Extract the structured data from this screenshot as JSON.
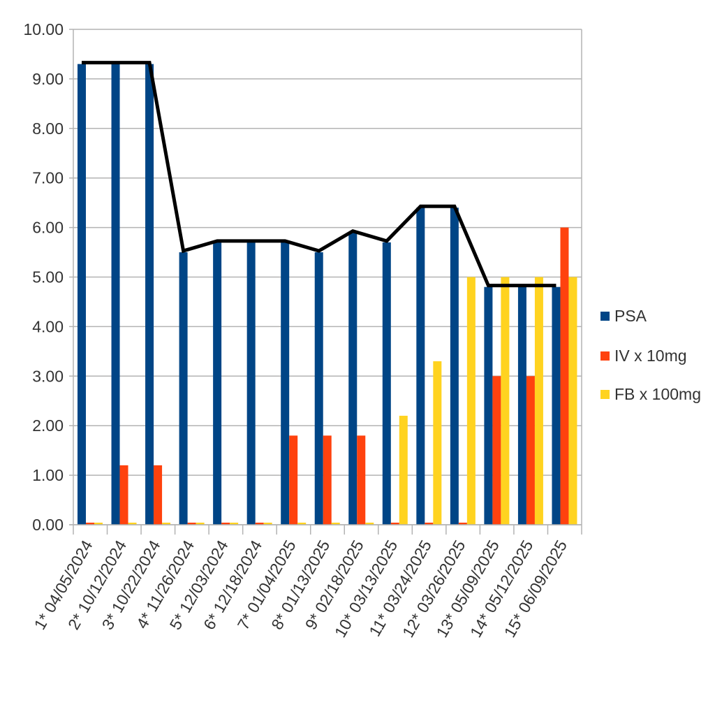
{
  "chart_data": {
    "type": "bar",
    "title": "",
    "xlabel": "",
    "ylabel": "",
    "ylim": [
      0,
      10
    ],
    "yticks": [
      "0.00",
      "1.00",
      "2.00",
      "3.00",
      "4.00",
      "5.00",
      "6.00",
      "7.00",
      "8.00",
      "9.00",
      "10.00"
    ],
    "grid": true,
    "legend_position": "right",
    "categories": [
      "1* 04/05/2024",
      "2* 10/12/2024",
      "3* 10/22/2024",
      "4* 11/26/2024",
      "5* 12/03/2024",
      "6* 12/18/2024",
      "7* 01/04/2025",
      "8* 01/13/2025",
      "9* 02/18/2025",
      "10* 03/13/2025",
      "11* 03/24/2025",
      "12* 03/26/2025",
      "13* 05/09/2025",
      "14* 05/12/2025",
      "15* 06/09/2025"
    ],
    "series": [
      {
        "name": "PSA",
        "color": "#004586",
        "values": [
          9.3,
          9.3,
          9.3,
          5.5,
          5.7,
          5.7,
          5.7,
          5.5,
          5.9,
          5.7,
          6.4,
          6.4,
          4.8,
          4.8,
          4.8
        ]
      },
      {
        "name": "IV x 10mg",
        "color": "#ff420e",
        "values": [
          0,
          1.2,
          1.2,
          0,
          0,
          0,
          1.8,
          1.8,
          1.8,
          0,
          0,
          0,
          3,
          3,
          6
        ]
      },
      {
        "name": "FB x 100mg",
        "color": "#ffd320",
        "values": [
          0,
          0,
          0,
          0,
          0,
          0,
          0,
          0,
          0,
          2.2,
          3.3,
          5,
          5,
          5,
          5
        ]
      }
    ],
    "line_overlay": {
      "series": "PSA",
      "color": "#000000"
    }
  }
}
